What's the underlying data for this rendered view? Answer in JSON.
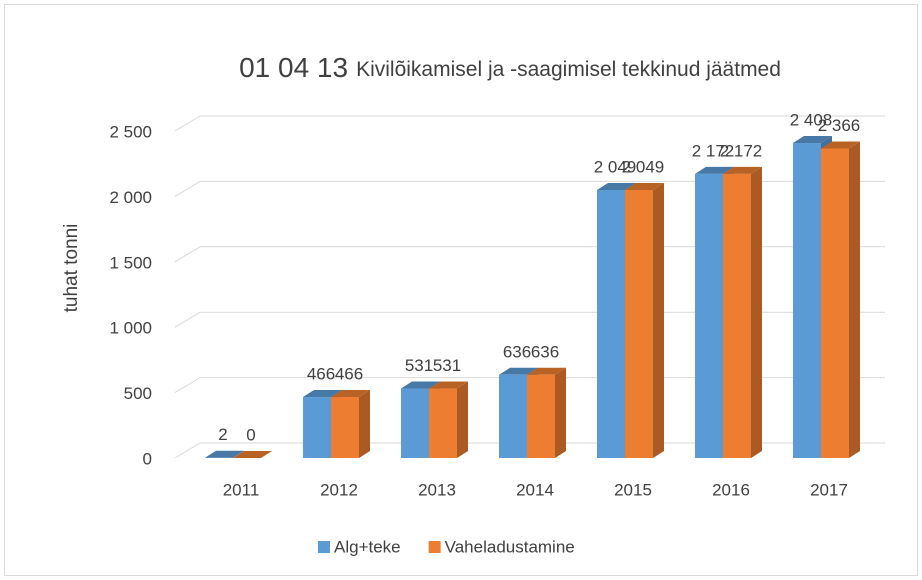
{
  "chart_data": {
    "type": "bar3d",
    "title": "01 04 13",
    "subtitle": "Kivilõikamisel ja -saagimisel tekkinud jäätmed",
    "y_label": "tuhat tonni",
    "categories": [
      "2011",
      "2012",
      "2013",
      "2014",
      "2015",
      "2016",
      "2017"
    ],
    "series": [
      {
        "name": "Alg+teke",
        "color": "#5b9bd5",
        "values": [
          2,
          466,
          531,
          636,
          2049,
          2172,
          2408
        ],
        "value_labels": [
          "2",
          "466",
          "531",
          "636",
          "2 049",
          "2 172",
          "2 408"
        ]
      },
      {
        "name": "Vaheladustamine",
        "color": "#ed7d31",
        "values": [
          0,
          466,
          531,
          636,
          2049,
          2172,
          2366
        ],
        "value_labels": [
          "0",
          "466",
          "531",
          "636",
          "2 049",
          "2 172",
          "2 366"
        ]
      }
    ],
    "ylim": [
      0,
      2500
    ],
    "yticks": [
      0,
      500,
      {
        "value": 1000,
        "label": "1 000"
      },
      {
        "value": 1500,
        "label": "1 500"
      },
      {
        "value": 2000,
        "label": "2 000"
      },
      {
        "value": 2500,
        "label": "2 500"
      }
    ],
    "grid": true,
    "legend": "bottom"
  }
}
